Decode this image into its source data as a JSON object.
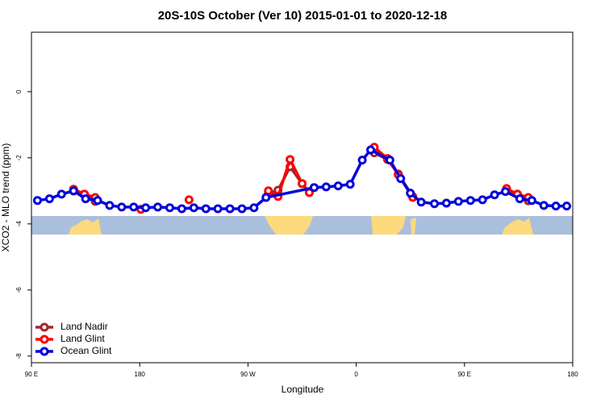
{
  "chart_data": {
    "type": "line",
    "title": "20S-10S October (Ver 10)   2015-01-01 to 2020-12-18",
    "xlabel": "Longitude",
    "ylabel": "XCO2 - MLO trend (ppm)",
    "xlim": [
      90,
      540
    ],
    "xticks": [
      {
        "value": 90,
        "label": "90 E"
      },
      180,
      {
        "value": 270,
        "label": "90 W"
      },
      {
        "value": 360,
        "label": "0"
      },
      {
        "value": 450,
        "label": "90 E"
      },
      {
        "value": 540,
        "label": "180"
      }
    ],
    "ylim": [
      -8.2,
      1.8
    ],
    "yticks": [
      -8,
      -6,
      -4,
      -2,
      0
    ],
    "legend": "bottom-left",
    "series": [
      {
        "name": "Land Nadir",
        "color": "#a0282c",
        "x": [
          125,
          134,
          143,
          null,
          287,
          295,
          305,
          315,
          321,
          null,
          375,
          386,
          395,
          407,
          null,
          485,
          494,
          503
        ],
        "values": [
          -3.0,
          -3.1,
          -3.32,
          null,
          -3.07,
          -2.98,
          -2.27,
          -2.78,
          -3.05,
          null,
          -1.85,
          -2.05,
          -2.49,
          -3.17,
          null,
          -3.0,
          -3.1,
          -3.3
        ]
      },
      {
        "name": "Land Glint",
        "color": "#ff0000",
        "x": [
          125,
          134,
          143,
          null,
          181,
          null,
          221,
          null,
          287,
          295,
          305,
          315,
          321,
          null,
          375,
          386,
          395,
          407,
          null,
          485,
          494,
          503
        ],
        "values": [
          -2.95,
          -3.1,
          -3.2,
          null,
          -3.56,
          null,
          -3.27,
          null,
          -3.0,
          -3.17,
          -2.05,
          -2.78,
          -3.05,
          null,
          -1.68,
          -2.02,
          -2.51,
          -3.2,
          null,
          -2.93,
          -3.1,
          -3.2
        ]
      },
      {
        "name": "Ocean Glint",
        "color": "#0000dd",
        "x": [
          95,
          105,
          115,
          125,
          135,
          145,
          155,
          165,
          175,
          185,
          195,
          205,
          215,
          225,
          235,
          245,
          255,
          265,
          275,
          285,
          325,
          335,
          345,
          355,
          365,
          372,
          388,
          397,
          405,
          414,
          425,
          435,
          445,
          455,
          465,
          475,
          484,
          496,
          506,
          516,
          526,
          535
        ],
        "values": [
          -3.29,
          -3.24,
          -3.1,
          -3.0,
          -3.24,
          -3.29,
          -3.44,
          -3.49,
          -3.49,
          -3.51,
          -3.49,
          -3.51,
          -3.54,
          -3.51,
          -3.54,
          -3.54,
          -3.54,
          -3.54,
          -3.51,
          -3.2,
          -2.9,
          -2.88,
          -2.85,
          -2.8,
          -2.07,
          -1.76,
          -2.07,
          -2.63,
          -3.07,
          -3.34,
          -3.39,
          -3.37,
          -3.32,
          -3.29,
          -3.27,
          -3.12,
          -3.02,
          -3.24,
          -3.29,
          -3.44,
          -3.46,
          -3.46
        ]
      }
    ]
  }
}
